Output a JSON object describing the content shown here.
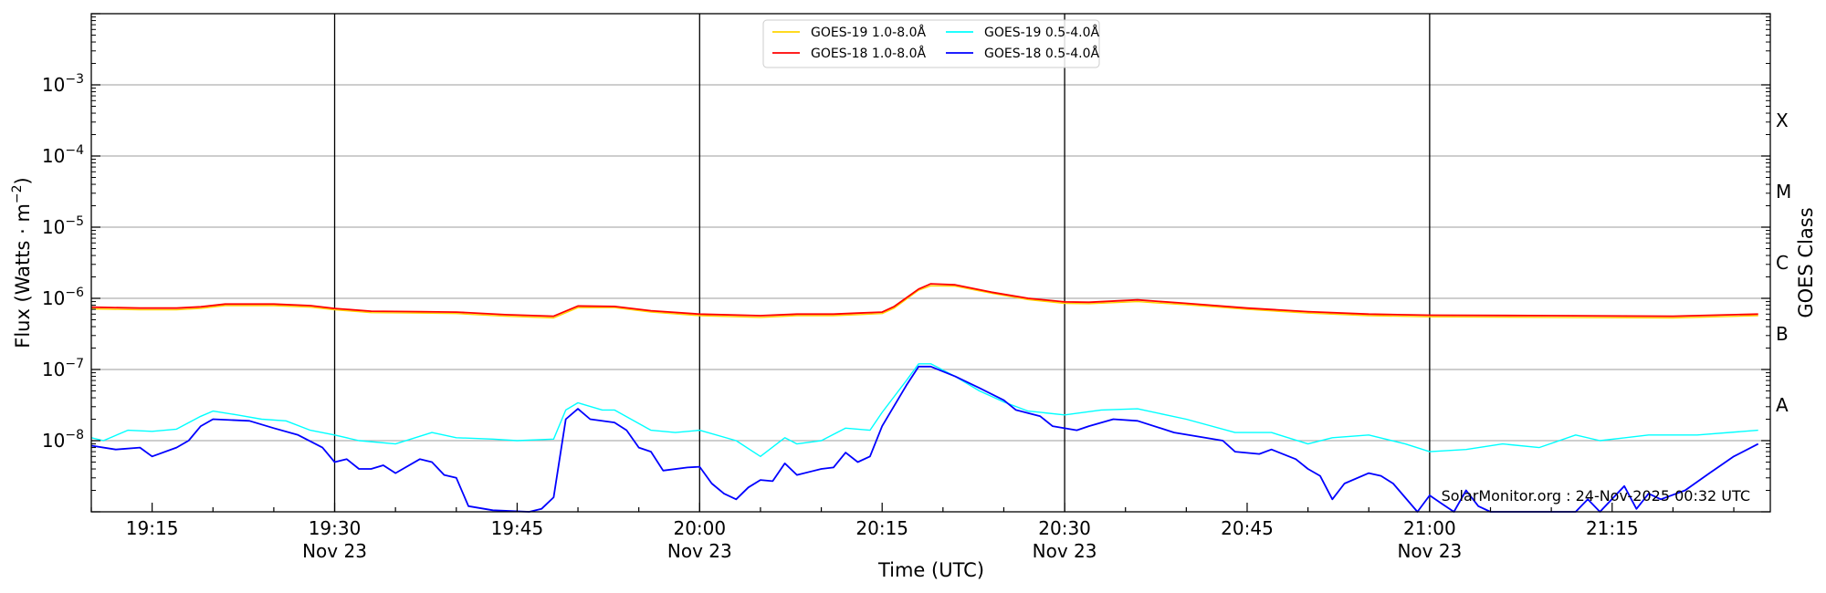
{
  "chart_data": {
    "type": "line",
    "xlabel": "Time (UTC)",
    "ylabel": "Flux (Watts · m",
    "ylabel_exp": "−2",
    "ylabel_close": ")",
    "right_label": "GOES Class",
    "yscale": "log",
    "ylim_exp": [
      -9,
      -2
    ],
    "xlim": [
      "19:10",
      "21:28"
    ],
    "grid": "horizontal major",
    "date_label": "Nov 23",
    "x_ticks": [
      {
        "t": "19:15",
        "label": "19:15",
        "date": false
      },
      {
        "t": "19:30",
        "label": "19:30",
        "date": true
      },
      {
        "t": "19:45",
        "label": "19:45",
        "date": false
      },
      {
        "t": "20:00",
        "label": "20:00",
        "date": true
      },
      {
        "t": "20:15",
        "label": "20:15",
        "date": false
      },
      {
        "t": "20:30",
        "label": "20:30",
        "date": true
      },
      {
        "t": "20:45",
        "label": "20:45",
        "date": false
      },
      {
        "t": "21:00",
        "label": "21:00",
        "date": true
      },
      {
        "t": "21:15",
        "label": "21:15",
        "date": false
      }
    ],
    "y_ticks": [
      {
        "exp": -3,
        "base": "10",
        "sup": "−3"
      },
      {
        "exp": -4,
        "base": "10",
        "sup": "−4"
      },
      {
        "exp": -5,
        "base": "10",
        "sup": "−5"
      },
      {
        "exp": -6,
        "base": "10",
        "sup": "−6"
      },
      {
        "exp": -7,
        "base": "10",
        "sup": "−7"
      },
      {
        "exp": -8,
        "base": "10",
        "sup": "−8"
      }
    ],
    "class_labels": [
      {
        "label": "X",
        "exp": -3.5
      },
      {
        "label": "M",
        "exp": -4.5
      },
      {
        "label": "C",
        "exp": -5.5
      },
      {
        "label": "B",
        "exp": -6.5
      },
      {
        "label": "A",
        "exp": -7.5
      }
    ],
    "watermark": "SolarMonitor.org : 24-Nov-2025 00:32 UTC",
    "legend_position": "top-center",
    "series": [
      {
        "name": "GOES-19 1.0-8.0Å",
        "color": "#ffd400",
        "points": [
          [
            "19:10",
            7.1e-07
          ],
          [
            "19:14",
            6.9e-07
          ],
          [
            "19:17",
            6.9e-07
          ],
          [
            "19:19",
            7.2e-07
          ],
          [
            "19:21",
            7.9e-07
          ],
          [
            "19:25",
            7.9e-07
          ],
          [
            "19:28",
            7.5e-07
          ],
          [
            "19:30",
            6.9e-07
          ],
          [
            "19:33",
            6.3e-07
          ],
          [
            "19:37",
            6.2e-07
          ],
          [
            "19:40",
            6.1e-07
          ],
          [
            "19:44",
            5.6e-07
          ],
          [
            "19:48",
            5.3e-07
          ],
          [
            "19:50",
            7.4e-07
          ],
          [
            "19:53",
            7.4e-07
          ],
          [
            "19:56",
            6.4e-07
          ],
          [
            "20:00",
            5.7e-07
          ],
          [
            "20:05",
            5.4e-07
          ],
          [
            "20:08",
            5.7e-07
          ],
          [
            "20:11",
            5.7e-07
          ],
          [
            "20:13",
            5.9e-07
          ],
          [
            "20:15",
            6.1e-07
          ],
          [
            "20:16",
            7.3e-07
          ],
          [
            "20:18",
            1.3e-06
          ],
          [
            "20:19",
            1.5e-06
          ],
          [
            "20:21",
            1.48e-06
          ],
          [
            "20:24",
            1.18e-06
          ],
          [
            "20:27",
            9.6e-07
          ],
          [
            "20:30",
            8.5e-07
          ],
          [
            "20:32",
            8.4e-07
          ],
          [
            "20:36",
            9e-07
          ],
          [
            "20:40",
            8.1e-07
          ],
          [
            "20:45",
            7e-07
          ],
          [
            "20:50",
            6.2e-07
          ],
          [
            "20:55",
            5.7e-07
          ],
          [
            "21:00",
            5.5e-07
          ],
          [
            "21:10",
            5.4e-07
          ],
          [
            "21:20",
            5.3e-07
          ],
          [
            "21:27",
            5.7e-07
          ]
        ]
      },
      {
        "name": "GOES-18 1.0-8.0Å",
        "color": "#ff0000",
        "points": [
          [
            "19:10",
            7.5e-07
          ],
          [
            "19:14",
            7.3e-07
          ],
          [
            "19:17",
            7.3e-07
          ],
          [
            "19:19",
            7.6e-07
          ],
          [
            "19:21",
            8.3e-07
          ],
          [
            "19:25",
            8.3e-07
          ],
          [
            "19:28",
            7.9e-07
          ],
          [
            "19:30",
            7.2e-07
          ],
          [
            "19:33",
            6.6e-07
          ],
          [
            "19:37",
            6.5e-07
          ],
          [
            "19:40",
            6.4e-07
          ],
          [
            "19:44",
            5.9e-07
          ],
          [
            "19:48",
            5.6e-07
          ],
          [
            "19:50",
            7.8e-07
          ],
          [
            "19:53",
            7.7e-07
          ],
          [
            "19:56",
            6.7e-07
          ],
          [
            "20:00",
            6e-07
          ],
          [
            "20:05",
            5.7e-07
          ],
          [
            "20:08",
            6e-07
          ],
          [
            "20:11",
            6e-07
          ],
          [
            "20:13",
            6.2e-07
          ],
          [
            "20:15",
            6.4e-07
          ],
          [
            "20:16",
            7.7e-07
          ],
          [
            "20:18",
            1.35e-06
          ],
          [
            "20:19",
            1.6e-06
          ],
          [
            "20:21",
            1.55e-06
          ],
          [
            "20:24",
            1.22e-06
          ],
          [
            "20:27",
            1e-06
          ],
          [
            "20:30",
            8.9e-07
          ],
          [
            "20:32",
            8.8e-07
          ],
          [
            "20:36",
            9.5e-07
          ],
          [
            "20:40",
            8.5e-07
          ],
          [
            "20:45",
            7.3e-07
          ],
          [
            "20:50",
            6.5e-07
          ],
          [
            "20:55",
            6e-07
          ],
          [
            "21:00",
            5.8e-07
          ],
          [
            "21:10",
            5.7e-07
          ],
          [
            "21:20",
            5.6e-07
          ],
          [
            "21:27",
            6e-07
          ]
        ]
      },
      {
        "name": "GOES-19 0.5-4.0Å",
        "color": "#00ffff",
        "points": [
          [
            "19:10",
            1.1e-08
          ],
          [
            "19:11",
            1e-08
          ],
          [
            "19:13",
            1.4e-08
          ],
          [
            "19:15",
            1.35e-08
          ],
          [
            "19:17",
            1.45e-08
          ],
          [
            "19:19",
            2.2e-08
          ],
          [
            "19:20",
            2.6e-08
          ],
          [
            "19:22",
            2.3e-08
          ],
          [
            "19:24",
            2e-08
          ],
          [
            "19:26",
            1.9e-08
          ],
          [
            "19:28",
            1.4e-08
          ],
          [
            "19:30",
            1.2e-08
          ],
          [
            "19:32",
            1e-08
          ],
          [
            "19:35",
            9e-09
          ],
          [
            "19:38",
            1.3e-08
          ],
          [
            "19:40",
            1.1e-08
          ],
          [
            "19:43",
            1.05e-08
          ],
          [
            "19:45",
            1e-08
          ],
          [
            "19:48",
            1.05e-08
          ],
          [
            "19:49",
            2.7e-08
          ],
          [
            "19:50",
            3.4e-08
          ],
          [
            "19:52",
            2.7e-08
          ],
          [
            "19:53",
            2.7e-08
          ],
          [
            "19:56",
            1.4e-08
          ],
          [
            "19:58",
            1.3e-08
          ],
          [
            "20:00",
            1.4e-08
          ],
          [
            "20:03",
            1e-08
          ],
          [
            "20:05",
            6e-09
          ],
          [
            "20:07",
            1.1e-08
          ],
          [
            "20:08",
            9e-09
          ],
          [
            "20:10",
            1e-08
          ],
          [
            "20:12",
            1.5e-08
          ],
          [
            "20:14",
            1.4e-08
          ],
          [
            "20:15",
            2.5e-08
          ],
          [
            "20:17",
            7e-08
          ],
          [
            "20:18",
            1.2e-07
          ],
          [
            "20:19",
            1.2e-07
          ],
          [
            "20:21",
            8e-08
          ],
          [
            "20:23",
            5e-08
          ],
          [
            "20:25",
            3.5e-08
          ],
          [
            "20:27",
            2.6e-08
          ],
          [
            "20:30",
            2.3e-08
          ],
          [
            "20:33",
            2.7e-08
          ],
          [
            "20:36",
            2.8e-08
          ],
          [
            "20:40",
            2e-08
          ],
          [
            "20:44",
            1.3e-08
          ],
          [
            "20:47",
            1.3e-08
          ],
          [
            "20:50",
            9e-09
          ],
          [
            "20:52",
            1.1e-08
          ],
          [
            "20:55",
            1.2e-08
          ],
          [
            "20:58",
            9e-09
          ],
          [
            "21:00",
            7e-09
          ],
          [
            "21:03",
            7.5e-09
          ],
          [
            "21:06",
            9e-09
          ],
          [
            "21:09",
            8e-09
          ],
          [
            "21:12",
            1.2e-08
          ],
          [
            "21:14",
            1e-08
          ],
          [
            "21:18",
            1.2e-08
          ],
          [
            "21:22",
            1.2e-08
          ],
          [
            "21:27",
            1.4e-08
          ]
        ]
      },
      {
        "name": "GOES-18 0.5-4.0Å",
        "color": "#0000ff",
        "points": [
          [
            "19:10",
            8.5e-09
          ],
          [
            "19:12",
            7.5e-09
          ],
          [
            "19:14",
            8e-09
          ],
          [
            "19:15",
            6e-09
          ],
          [
            "19:17",
            8e-09
          ],
          [
            "19:18",
            1e-08
          ],
          [
            "19:19",
            1.6e-08
          ],
          [
            "19:20",
            2e-08
          ],
          [
            "19:23",
            1.9e-08
          ],
          [
            "19:25",
            1.5e-08
          ],
          [
            "19:27",
            1.2e-08
          ],
          [
            "19:29",
            8e-09
          ],
          [
            "19:30",
            5e-09
          ],
          [
            "19:31",
            5.5e-09
          ],
          [
            "19:32",
            4e-09
          ],
          [
            "19:33",
            4e-09
          ],
          [
            "19:34",
            4.5e-09
          ],
          [
            "19:35",
            3.5e-09
          ],
          [
            "19:37",
            5.5e-09
          ],
          [
            "19:38",
            5e-09
          ],
          [
            "19:39",
            3.3e-09
          ],
          [
            "19:40",
            3e-09
          ],
          [
            "19:41",
            1.2e-09
          ],
          [
            "19:43",
            1.05e-09
          ],
          [
            "19:46",
            1e-09
          ],
          [
            "19:47",
            1.1e-09
          ],
          [
            "19:48",
            1.6e-09
          ],
          [
            "19:49",
            2e-08
          ],
          [
            "19:50",
            2.8e-08
          ],
          [
            "19:51",
            2e-08
          ],
          [
            "19:53",
            1.8e-08
          ],
          [
            "19:54",
            1.4e-08
          ],
          [
            "19:55",
            8e-09
          ],
          [
            "19:56",
            7e-09
          ],
          [
            "19:57",
            3.8e-09
          ],
          [
            "19:59",
            4.2e-09
          ],
          [
            "20:00",
            4.3e-09
          ],
          [
            "20:01",
            2.5e-09
          ],
          [
            "20:02",
            1.8e-09
          ],
          [
            "20:03",
            1.5e-09
          ],
          [
            "20:04",
            2.2e-09
          ],
          [
            "20:05",
            2.8e-09
          ],
          [
            "20:06",
            2.7e-09
          ],
          [
            "20:07",
            4.8e-09
          ],
          [
            "20:08",
            3.3e-09
          ],
          [
            "20:10",
            4e-09
          ],
          [
            "20:11",
            4.2e-09
          ],
          [
            "20:12",
            6.8e-09
          ],
          [
            "20:13",
            5e-09
          ],
          [
            "20:14",
            6e-09
          ],
          [
            "20:15",
            1.6e-08
          ],
          [
            "20:17",
            6e-08
          ],
          [
            "20:18",
            1.1e-07
          ],
          [
            "20:19",
            1.1e-07
          ],
          [
            "20:21",
            8e-08
          ],
          [
            "20:23",
            5.5e-08
          ],
          [
            "20:25",
            3.7e-08
          ],
          [
            "20:26",
            2.7e-08
          ],
          [
            "20:28",
            2.2e-08
          ],
          [
            "20:29",
            1.6e-08
          ],
          [
            "20:31",
            1.4e-08
          ],
          [
            "20:32",
            1.6e-08
          ],
          [
            "20:34",
            2e-08
          ],
          [
            "20:36",
            1.9e-08
          ],
          [
            "20:39",
            1.3e-08
          ],
          [
            "20:43",
            1e-08
          ],
          [
            "20:44",
            7e-09
          ],
          [
            "20:46",
            6.5e-09
          ],
          [
            "20:47",
            7.5e-09
          ],
          [
            "20:49",
            5.5e-09
          ],
          [
            "20:50",
            4e-09
          ],
          [
            "20:51",
            3.2e-09
          ],
          [
            "20:52",
            1.5e-09
          ],
          [
            "20:53",
            2.5e-09
          ],
          [
            "20:55",
            3.5e-09
          ],
          [
            "20:56",
            3.2e-09
          ],
          [
            "20:57",
            2.5e-09
          ],
          [
            "20:59",
            1e-09
          ],
          [
            "21:00",
            1.7e-09
          ],
          [
            "21:01",
            1.3e-09
          ],
          [
            "21:02",
            1e-09
          ],
          [
            "21:03",
            2e-09
          ],
          [
            "21:04",
            1.2e-09
          ],
          [
            "21:05",
            1e-09
          ],
          [
            "21:12",
            1e-09
          ],
          [
            "21:13",
            1.5e-09
          ],
          [
            "21:14",
            1e-09
          ],
          [
            "21:16",
            2.3e-09
          ],
          [
            "21:17",
            1.1e-09
          ],
          [
            "21:18",
            1.8e-09
          ],
          [
            "21:19",
            1.5e-09
          ],
          [
            "21:21",
            2e-09
          ],
          [
            "21:23",
            3.5e-09
          ],
          [
            "21:25",
            6e-09
          ],
          [
            "21:27",
            9e-09
          ]
        ]
      }
    ]
  }
}
